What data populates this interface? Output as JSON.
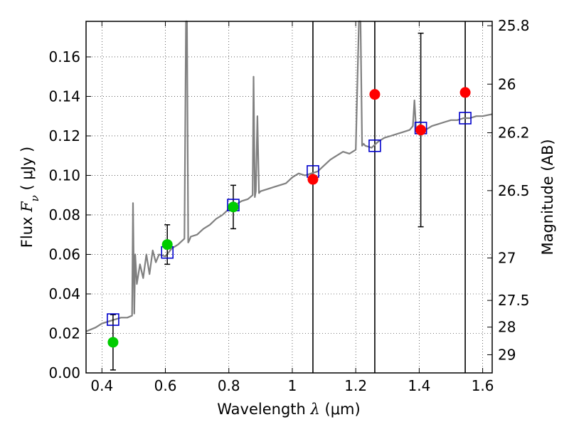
{
  "chart_data": {
    "type": "scatter",
    "xlabel": {
      "prefix": "Wavelength  ",
      "symbol": "λ",
      "unit": " (μm)"
    },
    "ylabel": {
      "prefix": "Flux  ",
      "symbol": "F",
      "subscript": "ν",
      "unit": "  ( μJy )"
    },
    "ylabel_right": "Magnitude (AB)",
    "xlim": [
      0.35,
      1.63
    ],
    "ylim": [
      0.0,
      0.178
    ],
    "grid": true,
    "x_ticks": [
      0.4,
      0.6,
      0.8,
      1.0,
      1.2,
      1.4,
      1.6
    ],
    "x_tick_labels": [
      "0.4",
      "0.6",
      "0.8",
      "1",
      "1.2",
      "1.4",
      "1.6"
    ],
    "y_ticks": [
      0.0,
      0.02,
      0.04,
      0.06,
      0.08,
      0.1,
      0.12,
      0.14,
      0.16
    ],
    "y_tick_labels": [
      "0.00",
      "0.02",
      "0.04",
      "0.06",
      "0.08",
      "0.10",
      "0.12",
      "0.14",
      "0.16"
    ],
    "right_ticks": [
      {
        "label": "25.8",
        "flux": 0.1758
      },
      {
        "label": "26",
        "flux": 0.1462
      },
      {
        "label": "26.2",
        "flux": 0.1216
      },
      {
        "label": "26.5",
        "flux": 0.0923
      },
      {
        "label": "27",
        "flux": 0.0582
      },
      {
        "label": "27.5",
        "flux": 0.0367
      },
      {
        "label": "28",
        "flux": 0.0232
      },
      {
        "label": "29",
        "flux": 0.0092
      }
    ],
    "vertical_lines": [
      1.065,
      1.26,
      1.545
    ],
    "series": [
      {
        "kind": "model_spectrum",
        "color": "#808080",
        "x": [
          0.35,
          0.38,
          0.4,
          0.42,
          0.44,
          0.46,
          0.48,
          0.495,
          0.498,
          0.502,
          0.505,
          0.51,
          0.52,
          0.53,
          0.54,
          0.55,
          0.56,
          0.57,
          0.58,
          0.6,
          0.62,
          0.64,
          0.66,
          0.665,
          0.668,
          0.672,
          0.675,
          0.68,
          0.7,
          0.72,
          0.74,
          0.76,
          0.78,
          0.8,
          0.82,
          0.84,
          0.86,
          0.875,
          0.878,
          0.882,
          0.885,
          0.89,
          0.895,
          0.9,
          0.92,
          0.94,
          0.96,
          0.98,
          1.0,
          1.02,
          1.04,
          1.06,
          1.08,
          1.1,
          1.12,
          1.14,
          1.16,
          1.18,
          1.2,
          1.21,
          1.215,
          1.22,
          1.225,
          1.23,
          1.25,
          1.27,
          1.29,
          1.31,
          1.33,
          1.35,
          1.37,
          1.38,
          1.385,
          1.39,
          1.4,
          1.42,
          1.44,
          1.46,
          1.48,
          1.5,
          1.52,
          1.54,
          1.56,
          1.58,
          1.6,
          1.63
        ],
        "y": [
          0.021,
          0.023,
          0.025,
          0.026,
          0.027,
          0.028,
          0.028,
          0.029,
          0.086,
          0.03,
          0.06,
          0.045,
          0.055,
          0.048,
          0.06,
          0.05,
          0.062,
          0.056,
          0.06,
          0.059,
          0.063,
          0.065,
          0.068,
          0.18,
          0.18,
          0.066,
          0.067,
          0.069,
          0.07,
          0.073,
          0.075,
          0.078,
          0.08,
          0.083,
          0.085,
          0.087,
          0.088,
          0.09,
          0.15,
          0.089,
          0.092,
          0.13,
          0.091,
          0.092,
          0.093,
          0.094,
          0.095,
          0.096,
          0.099,
          0.101,
          0.1,
          0.101,
          0.102,
          0.105,
          0.108,
          0.11,
          0.112,
          0.111,
          0.113,
          0.178,
          0.178,
          0.115,
          0.116,
          0.115,
          0.114,
          0.117,
          0.119,
          0.12,
          0.121,
          0.122,
          0.123,
          0.125,
          0.138,
          0.124,
          0.124,
          0.123,
          0.125,
          0.126,
          0.127,
          0.128,
          0.128,
          0.129,
          0.129,
          0.13,
          0.13,
          0.131
        ]
      },
      {
        "kind": "model_band_flux",
        "color": "#0000cc",
        "marker": "open-square",
        "points": [
          {
            "x": 0.435,
            "y": 0.027
          },
          {
            "x": 0.606,
            "y": 0.061
          },
          {
            "x": 0.814,
            "y": 0.085
          },
          {
            "x": 1.065,
            "y": 0.102
          },
          {
            "x": 1.26,
            "y": 0.115
          },
          {
            "x": 1.405,
            "y": 0.124
          },
          {
            "x": 1.545,
            "y": 0.129
          }
        ]
      },
      {
        "kind": "optical_photometry",
        "color": "#00cc00",
        "marker": "filled-circle",
        "points": [
          {
            "x": 0.435,
            "y": 0.0155,
            "err": 0.014
          },
          {
            "x": 0.606,
            "y": 0.065,
            "err": 0.01
          },
          {
            "x": 0.814,
            "y": 0.084,
            "err": 0.011
          }
        ]
      },
      {
        "kind": "infrared_photometry",
        "color": "#ff0000",
        "marker": "filled-circle",
        "points": [
          {
            "x": 1.065,
            "y": 0.098,
            "err": null
          },
          {
            "x": 1.26,
            "y": 0.141,
            "err": null
          },
          {
            "x": 1.405,
            "y": 0.123,
            "err": 0.049
          },
          {
            "x": 1.545,
            "y": 0.142,
            "err": null
          }
        ]
      }
    ]
  }
}
